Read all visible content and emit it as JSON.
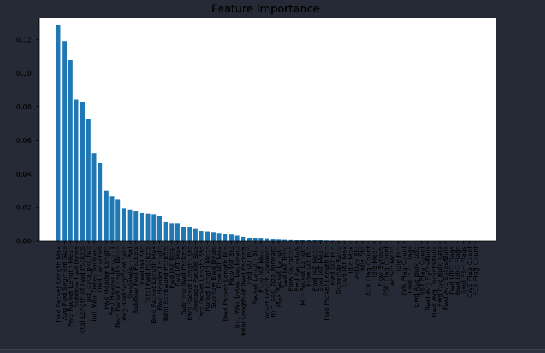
{
  "colors": {
    "background": "#262a36",
    "plot_area": "#ffffff",
    "bar": "#1f77b4",
    "text": "#000000"
  },
  "chart_data": {
    "type": "bar",
    "title": "Feature Importance",
    "xlabel": "",
    "ylabel": "",
    "ylim": [
      0,
      0.133
    ],
    "yticks": [
      0.0,
      0.02,
      0.04,
      0.06,
      0.08,
      0.1,
      0.12
    ],
    "ytick_labels": [
      "0.00",
      "0.02",
      "0.04",
      "0.06",
      "0.08",
      "0.10",
      "0.12"
    ],
    "grid": false,
    "categories": [
      "Fwd Packet Length Max",
      "Avg Fwd Segment Size",
      "Fwd Packet Length Mean",
      "Subflow Fwd Bytes",
      "Total Length of Fwd Packets",
      "act_data_pkt_fwd",
      "Init_Win_bytes_forward",
      "Bwd Packets/s",
      "Fwd Header Length",
      "Fwd Header Length.1",
      "Bwd Packet Length Mean",
      "Avg Bwd Segment Size",
      "Destination Port",
      "Subflow Fwd Packets",
      "Fwd IAT Std",
      "Total Fwd Packets",
      "Bwd Packet Length Max",
      "Bwd Header Length",
      "Total Backward Packets",
      "Fwd IAT Total",
      "Fwd IAT Max",
      "Subflow Bwd Packets",
      "Bwd Packet Length Std",
      "Average Packet Size",
      "Fwd Packet Length Std",
      "Packet Length Mean",
      "Subflow Bwd Bytes",
      "Flow IAT Max",
      "Bwd Packet Length Min",
      "Flow IAT Std",
      "Init_Win_bytes_backward",
      "Total Length of Bwd Packets",
      "Fwd IAT Min",
      "Packet Length Std",
      "Flow IAT Mean",
      "Packet Length Variance",
      "min_seg_size_forward",
      "Max Packet Length",
      "Bwd IAT Total",
      "Flow Duration",
      "Fwd Packets/s",
      "Min Packet Length",
      "Flow IAT Min",
      "Fwd IAT Mean",
      "Bwd IAT Mean",
      "Fwd Packet Length Min",
      "Bwd IAT Min",
      "Down/Up Ratio",
      "Bwd IAT Max",
      "Idle Max",
      "Active Std",
      "Idle Std",
      "ACK Flag Count",
      "Idle Mean",
      "Flow Bytes/s",
      "PSH Flag Count",
      "Active Mean",
      "Idle Min",
      "SYN Flag Count",
      "Fwd PSH Flags",
      "Bwd Avg Bulk Rate",
      "RST Flag Count",
      "Bwd Avg Bytes/Bulk",
      "Bwd Avg Packets/Bulk",
      "Fwd Avg Bulk Rate",
      "Fwd Avg Bytes/Bulk",
      "Fwd URG Flags",
      "Bwd URG Flags",
      "Bwd PSH Flags",
      "CWE Flag Count",
      "ECE Flag Count"
    ],
    "values": [
      0.1285,
      0.119,
      0.108,
      0.0845,
      0.083,
      0.0725,
      0.0523,
      0.0465,
      0.03,
      0.0265,
      0.0248,
      0.0195,
      0.0185,
      0.018,
      0.0168,
      0.0165,
      0.0158,
      0.015,
      0.0115,
      0.0105,
      0.0105,
      0.0085,
      0.0085,
      0.0075,
      0.0058,
      0.0055,
      0.0052,
      0.0048,
      0.0042,
      0.004,
      0.0035,
      0.0025,
      0.002,
      0.0018,
      0.0016,
      0.0014,
      0.0012,
      0.0011,
      0.001,
      0.0009,
      0.0008,
      0.0007,
      0.0006,
      0.0005,
      0.0004,
      0.0003,
      0.00025,
      0.0002,
      0.00015,
      0.0001,
      8e-05,
      6e-05,
      5e-05,
      4e-05,
      3e-05,
      2e-05,
      1e-05,
      0,
      0,
      0,
      0,
      0,
      0,
      0,
      0,
      0,
      0,
      0,
      0,
      0,
      0
    ]
  }
}
